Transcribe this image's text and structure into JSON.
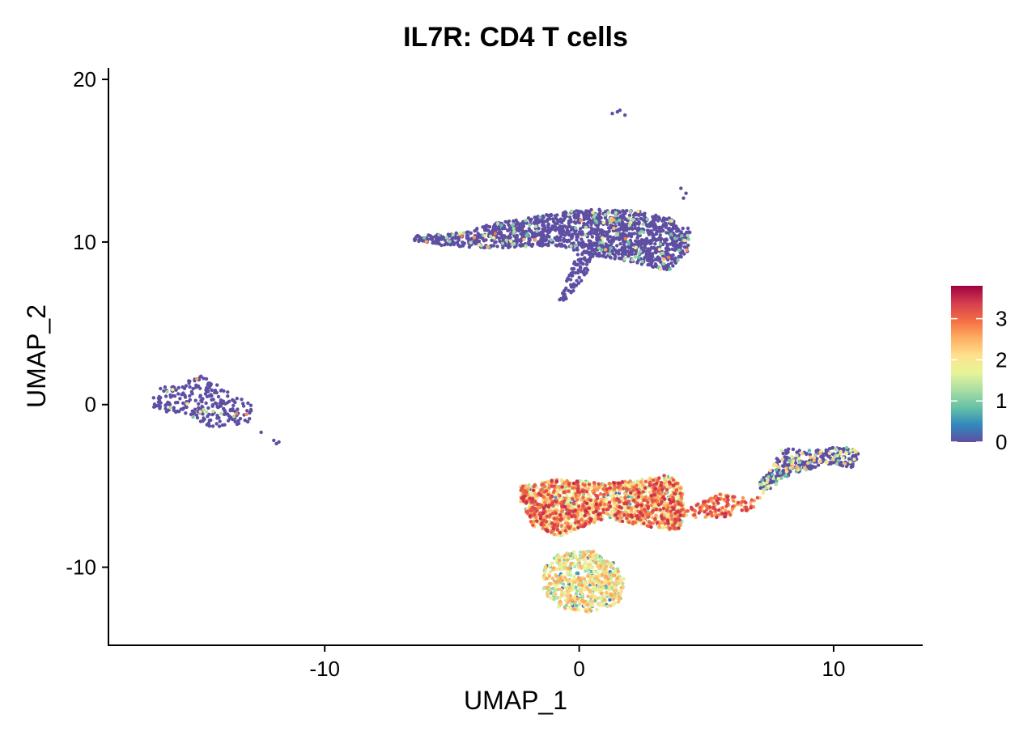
{
  "chart_data": {
    "type": "scatter",
    "title": "IL7R: CD4 T cells",
    "xlabel": "UMAP_1",
    "ylabel": "UMAP_2",
    "xlim": [
      -18.5,
      13.5
    ],
    "ylim": [
      -14.8,
      20.7
    ],
    "x_ticks": [
      -10,
      0,
      10
    ],
    "y_ticks": [
      -10,
      0,
      10,
      20
    ],
    "color_scale": {
      "name": "Spectral",
      "domain": [
        0,
        3.8
      ],
      "ticks": [
        0,
        1,
        2,
        3
      ],
      "colors": [
        "#5e4fa2",
        "#3288bd",
        "#66c2a5",
        "#abdda4",
        "#e6f598",
        "#fee08b",
        "#fdae61",
        "#f46d43",
        "#d53e4f",
        "#9e0142"
      ]
    },
    "legend_position": "right",
    "grid": false,
    "clusters": [
      {
        "name": "top-speck",
        "points": [
          [
            1.5,
            18.0
          ],
          [
            1.8,
            17.8
          ],
          [
            1.6,
            18.1
          ],
          [
            1.3,
            17.9
          ]
        ],
        "expression": "zero"
      },
      {
        "name": "top-tiny",
        "points": [
          [
            4.0,
            13.3
          ],
          [
            4.2,
            13.0
          ],
          [
            4.1,
            12.7
          ]
        ],
        "expression": "zero"
      },
      {
        "name": "upper-mass",
        "outline": [
          [
            -6.5,
            10.4
          ],
          [
            -5.0,
            10.5
          ],
          [
            -3.5,
            11.1
          ],
          [
            -2.0,
            11.5
          ],
          [
            0.0,
            12.0
          ],
          [
            2.0,
            12.0
          ],
          [
            3.5,
            11.5
          ],
          [
            4.4,
            10.8
          ],
          [
            4.3,
            9.5
          ],
          [
            3.5,
            8.2
          ],
          [
            2.0,
            8.8
          ],
          [
            0.5,
            9.2
          ],
          [
            -1.0,
            9.8
          ],
          [
            -3.5,
            9.6
          ],
          [
            -5.5,
            9.8
          ],
          [
            -6.5,
            10.1
          ]
        ],
        "count": 1500,
        "expression": "mostly-zero"
      },
      {
        "name": "upper-tail",
        "outline": [
          [
            0.0,
            9.5
          ],
          [
            -0.4,
            8.0
          ],
          [
            -0.9,
            6.5
          ],
          [
            -0.6,
            6.3
          ],
          [
            0.3,
            7.8
          ],
          [
            0.6,
            9.3
          ]
        ],
        "count": 90,
        "expression": "zero"
      },
      {
        "name": "left-ring",
        "outline": [
          [
            -16.8,
            0.3
          ],
          [
            -16.5,
            1.0
          ],
          [
            -15.5,
            1.4
          ],
          [
            -14.8,
            1.8
          ],
          [
            -13.5,
            0.5
          ],
          [
            -12.8,
            0.0
          ],
          [
            -13.0,
            -1.2
          ],
          [
            -14.5,
            -1.4
          ],
          [
            -15.5,
            -0.5
          ],
          [
            -16.2,
            -0.5
          ],
          [
            -16.8,
            -0.3
          ]
        ],
        "count": 240,
        "expression": "mostly-zero"
      },
      {
        "name": "left-stray",
        "points": [
          [
            -12.0,
            -2.2
          ],
          [
            -11.8,
            -2.3
          ],
          [
            -12.5,
            -1.7
          ],
          [
            -11.9,
            -2.4
          ]
        ],
        "expression": "zero"
      },
      {
        "name": "lower-main",
        "outline": [
          [
            -2.3,
            -5.0
          ],
          [
            -1.0,
            -4.6
          ],
          [
            1.0,
            -4.8
          ],
          [
            2.5,
            -4.6
          ],
          [
            3.5,
            -4.3
          ],
          [
            4.0,
            -5.0
          ],
          [
            4.2,
            -6.5
          ],
          [
            3.9,
            -7.8
          ],
          [
            3.0,
            -7.6
          ],
          [
            1.0,
            -7.0
          ],
          [
            -0.8,
            -8.1
          ],
          [
            -1.8,
            -7.5
          ],
          [
            -2.3,
            -6.0
          ]
        ],
        "count": 1700,
        "expression": "high"
      },
      {
        "name": "lower-bridge",
        "outline": [
          [
            4.0,
            -6.6
          ],
          [
            5.5,
            -5.5
          ],
          [
            6.8,
            -5.8
          ],
          [
            7.2,
            -5.5
          ],
          [
            6.8,
            -6.5
          ],
          [
            5.5,
            -7.0
          ],
          [
            4.2,
            -6.9
          ]
        ],
        "count": 150,
        "expression": "very-high"
      },
      {
        "name": "lower-blob",
        "outline": [
          [
            -1.4,
            -10.0
          ],
          [
            -0.8,
            -9.1
          ],
          [
            0.5,
            -9.0
          ],
          [
            1.3,
            -9.6
          ],
          [
            1.8,
            -10.8
          ],
          [
            1.6,
            -12.2
          ],
          [
            0.5,
            -12.8
          ],
          [
            -0.8,
            -12.5
          ],
          [
            -1.4,
            -11.5
          ]
        ],
        "count": 600,
        "expression": "mid"
      },
      {
        "name": "right-arm",
        "outline": [
          [
            7.0,
            -5.0
          ],
          [
            7.5,
            -4.0
          ],
          [
            8.0,
            -2.7
          ],
          [
            9.5,
            -2.8
          ],
          [
            10.3,
            -2.5
          ],
          [
            11.0,
            -2.8
          ],
          [
            10.8,
            -4.0
          ],
          [
            10.0,
            -3.6
          ],
          [
            9.0,
            -4.0
          ],
          [
            8.0,
            -4.5
          ],
          [
            7.3,
            -5.6
          ]
        ],
        "count": 320,
        "expression": "low-mixed"
      }
    ]
  }
}
